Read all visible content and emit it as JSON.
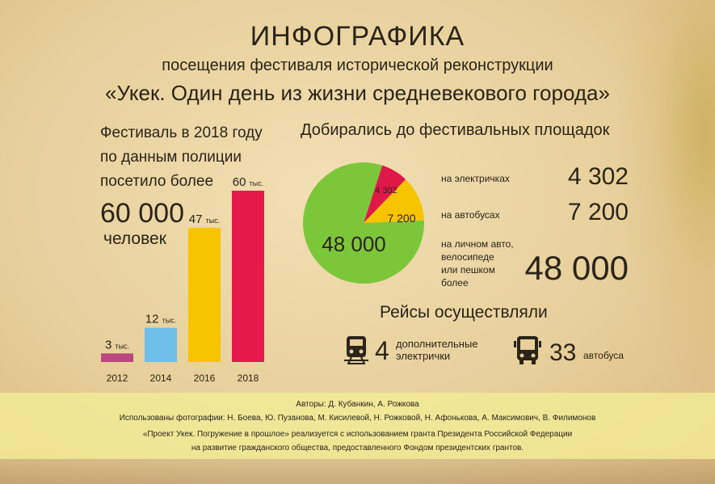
{
  "title": "ИНФОГРАФИКА",
  "subtitle_line1": "посещения фестиваля исторической реконструкции",
  "subtitle_line2": "«Укек. Один день из жизни средневекового города»",
  "festival": {
    "text_line1": "Фестиваль в 2018 году",
    "text_line2": "по данным полиции",
    "text_line3": "посетило более",
    "big_number": "60 000",
    "people": "человек"
  },
  "delivered": {
    "title": "Добирались до фестивальных площадок",
    "modes": [
      {
        "label_lines": [
          "на электричках"
        ],
        "value": "4 302"
      },
      {
        "label_lines": [
          "на автобусах"
        ],
        "value": "7 200"
      },
      {
        "label_lines": [
          "на личном авто,",
          "велосипеде",
          "или пешком",
          "более"
        ],
        "value": "48 000"
      }
    ]
  },
  "flights": {
    "title": "Рейсы осуществляли",
    "trains_count": "4",
    "trains_label_line1": "дополнительные",
    "trains_label_line2": "электрички",
    "buses_count": "33",
    "buses_label": "автобуса"
  },
  "footer": {
    "authors": "Авторы: Д. Кубанкин, А. Рожкова",
    "photos": "Использованы фотографии: Н. Боева, Ю. Пузанова, М. Кисилевой, Н. Рожковой, Н. Афонькова, А. Максимович, В. Филимонов",
    "grant_line1": "«Проект Укек. Погружение в прошлое» реализуется с использованием гранта Президента Российской Федерации",
    "grant_line2": "на развитие гражданского общества, предоставленного Фондом президентских грантов."
  },
  "icons": {
    "train": "train-icon",
    "bus": "bus-icon"
  },
  "chart_data": [
    {
      "type": "bar",
      "categories": [
        "2012",
        "2014",
        "2016",
        "2018"
      ],
      "values": [
        3,
        12,
        47,
        60
      ],
      "value_labels": [
        "3",
        "12",
        "47",
        "60"
      ],
      "value_unit": "тыс.",
      "colors": [
        "#b8487e",
        "#6fbfe8",
        "#f7c400",
        "#e5194b"
      ],
      "ylim": [
        0,
        60
      ]
    },
    {
      "type": "pie",
      "labels": [
        "4 302",
        "7 200",
        "48 000"
      ],
      "values": [
        4302,
        7200,
        48000
      ],
      "colors": [
        "#e0184a",
        "#f7c400",
        "#7cc63a"
      ]
    }
  ]
}
